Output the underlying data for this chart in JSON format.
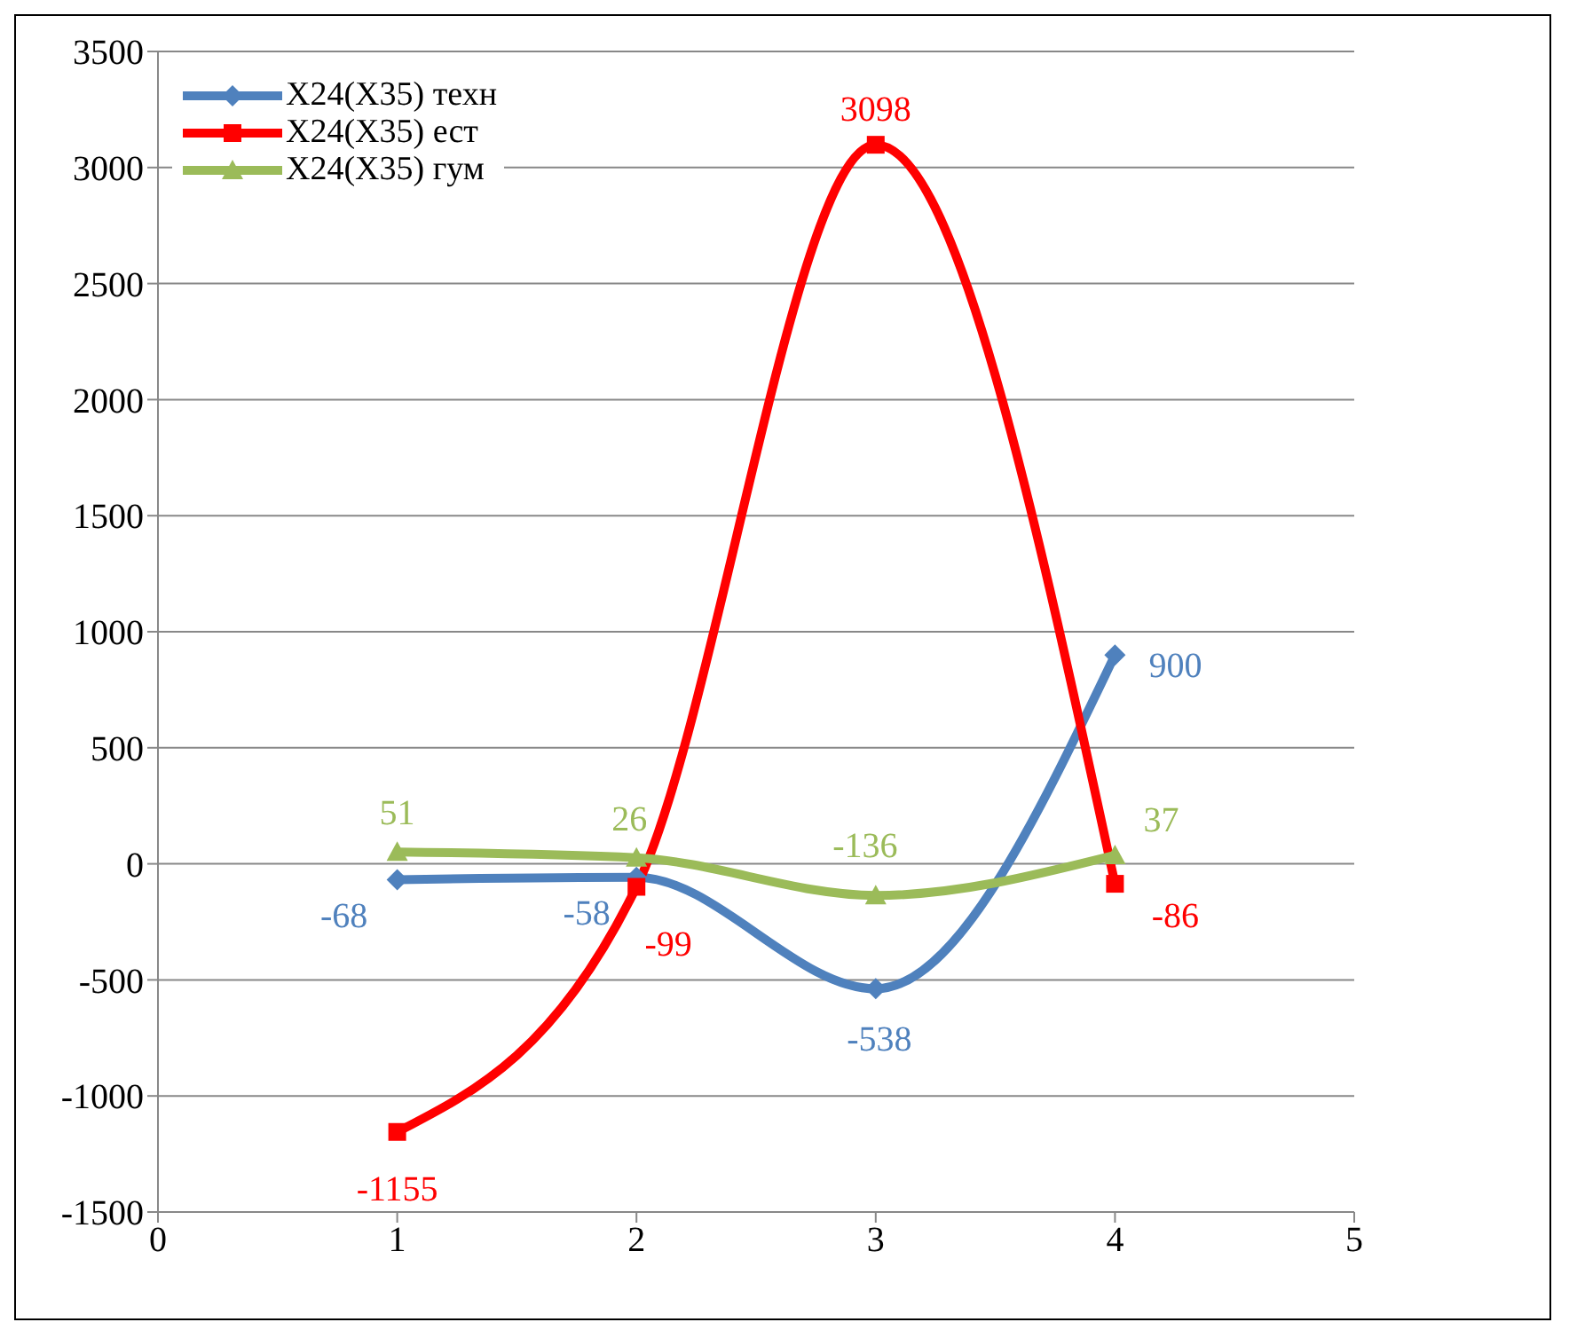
{
  "chart_data": {
    "type": "line",
    "x": [
      1,
      2,
      3,
      4
    ],
    "xlim": [
      0,
      5
    ],
    "xticks": [
      0,
      1,
      2,
      3,
      4,
      5
    ],
    "ylim": [
      -1500,
      3500
    ],
    "yticks": [
      -1500,
      -1000,
      -500,
      0,
      500,
      1000,
      1500,
      2000,
      2500,
      3000,
      3500
    ],
    "grid": "y",
    "legend": "top left",
    "data_labels": true,
    "series": [
      {
        "name": "X24(X35)  техн",
        "color": "#4f81bd",
        "marker": "diamond",
        "values": [
          -68,
          -58,
          -538,
          900
        ]
      },
      {
        "name": "X24(X35)  ест",
        "color": "#ff0000",
        "marker": "square",
        "values": [
          -1155,
          -99,
          3098,
          -86
        ]
      },
      {
        "name": "X24(X35)  гум",
        "color": "#9bbb59",
        "marker": "triangle",
        "values": [
          51,
          26,
          -136,
          37
        ]
      }
    ]
  }
}
